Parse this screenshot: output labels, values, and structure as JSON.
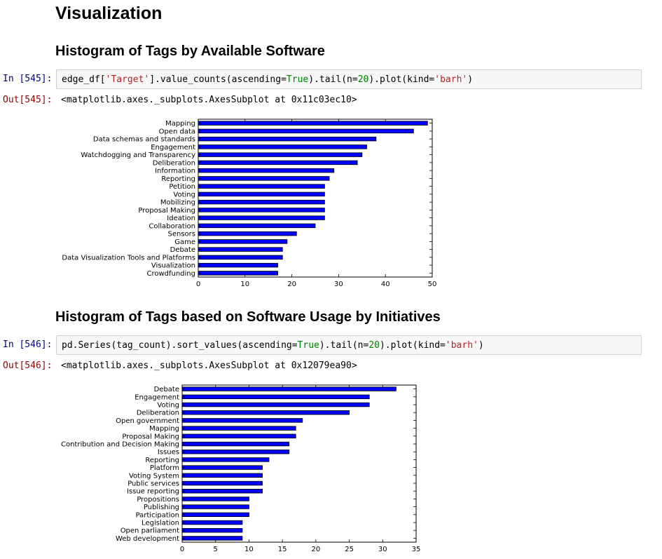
{
  "notebook": {
    "title": "Visualization",
    "sections": [
      {
        "heading": "Histogram of Tags by Available Software",
        "in_prompt": "In [545]:",
        "code": {
          "p1": "edge_df[",
          "s1": "'Target'",
          "p2": "].value_counts(ascending=",
          "k1": "True",
          "p3": ").tail(n=",
          "n1": "20",
          "p4": ").plot(kind=",
          "s2": "'barh'",
          "p5": ")"
        },
        "out_prompt": "Out[545]:",
        "output": "<matplotlib.axes._subplots.AxesSubplot at 0x11c03ec10>"
      },
      {
        "heading": "Histogram of Tags based on Software Usage by Initiatives",
        "in_prompt": "In [546]:",
        "code": {
          "p1": "pd.Series(tag_count).sort_values(ascending=",
          "k1": "True",
          "p2": ").tail(n=",
          "n1": "20",
          "p3": ").plot(kind=",
          "s1": "'barh'",
          "p4": ")"
        },
        "out_prompt": "Out[546]:",
        "output": "<matplotlib.axes._subplots.AxesSubplot at 0x12079ea90>"
      }
    ]
  },
  "chart_data": [
    {
      "type": "bar",
      "orientation": "horizontal",
      "bar_color": "#0000ff",
      "categories": [
        "Mapping",
        "Open data",
        "Data schemas and standards",
        "Engagement",
        "Watchdogging and Transparency",
        "Deliberation",
        "Information",
        "Reporting",
        "Petition",
        "Voting",
        "Mobilizing",
        "Proposal Making",
        "Ideation",
        "Collaboration",
        "Sensors",
        "Game",
        "Debate",
        "Data Visualization Tools and Platforms",
        "Visualization",
        "Crowdfunding"
      ],
      "values": [
        49,
        46,
        38,
        36,
        35,
        34,
        29,
        28,
        27,
        27,
        27,
        27,
        27,
        25,
        21,
        19,
        18,
        18,
        17,
        17
      ],
      "xlim": [
        0,
        50
      ],
      "xticks": [
        0,
        10,
        20,
        30,
        40,
        50
      ],
      "grid": false
    },
    {
      "type": "bar",
      "orientation": "horizontal",
      "bar_color": "#0000ff",
      "categories": [
        "Debate",
        "Engagement",
        "Voting",
        "Deliberation",
        "Open government",
        "Mapping",
        "Proposal Making",
        "Contribution and Decision Making",
        "Issues",
        "Reporting",
        "Platform",
        "Voting System",
        "Public services",
        "Issue reporting",
        "Propositions",
        "Publishing",
        "Participation",
        "Legislation",
        "Open parliament",
        "Web development"
      ],
      "values": [
        32,
        28,
        28,
        25,
        18,
        17,
        17,
        16,
        16,
        13,
        12,
        12,
        12,
        12,
        10,
        10,
        10,
        9,
        9,
        9
      ],
      "xlim": [
        0,
        35
      ],
      "xticks": [
        0,
        5,
        10,
        15,
        20,
        25,
        30,
        35
      ],
      "grid": false
    }
  ]
}
